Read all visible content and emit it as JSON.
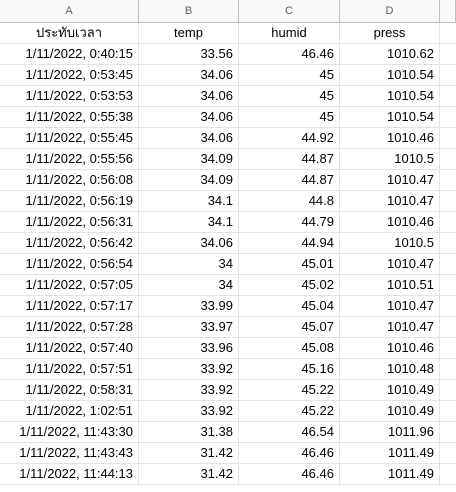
{
  "column_letters": [
    "A",
    "B",
    "C",
    "D"
  ],
  "header_row": {
    "a": "ประทับเวลา",
    "b": "temp",
    "c": "humid",
    "d": "press"
  },
  "rows": [
    [
      "1/11/2022, 0:40:15",
      "33.56",
      "46.46",
      "1010.62"
    ],
    [
      "1/11/2022, 0:53:45",
      "34.06",
      "45",
      "1010.54"
    ],
    [
      "1/11/2022, 0:53:53",
      "34.06",
      "45",
      "1010.54"
    ],
    [
      "1/11/2022, 0:55:38",
      "34.06",
      "45",
      "1010.54"
    ],
    [
      "1/11/2022, 0:55:45",
      "34.06",
      "44.92",
      "1010.46"
    ],
    [
      "1/11/2022, 0:55:56",
      "34.09",
      "44.87",
      "1010.5"
    ],
    [
      "1/11/2022, 0:56:08",
      "34.09",
      "44.87",
      "1010.47"
    ],
    [
      "1/11/2022, 0:56:19",
      "34.1",
      "44.8",
      "1010.47"
    ],
    [
      "1/11/2022, 0:56:31",
      "34.1",
      "44.79",
      "1010.46"
    ],
    [
      "1/11/2022, 0:56:42",
      "34.06",
      "44.94",
      "1010.5"
    ],
    [
      "1/11/2022, 0:56:54",
      "34",
      "45.01",
      "1010.47"
    ],
    [
      "1/11/2022, 0:57:05",
      "34",
      "45.02",
      "1010.51"
    ],
    [
      "1/11/2022, 0:57:17",
      "33.99",
      "45.04",
      "1010.47"
    ],
    [
      "1/11/2022, 0:57:28",
      "33.97",
      "45.07",
      "1010.47"
    ],
    [
      "1/11/2022, 0:57:40",
      "33.96",
      "45.08",
      "1010.46"
    ],
    [
      "1/11/2022, 0:57:51",
      "33.92",
      "45.16",
      "1010.48"
    ],
    [
      "1/11/2022, 0:58:31",
      "33.92",
      "45.22",
      "1010.49"
    ],
    [
      "1/11/2022, 1:02:51",
      "33.92",
      "45.22",
      "1010.49"
    ],
    [
      "1/11/2022, 11:43:30",
      "31.38",
      "46.54",
      "1011.96"
    ],
    [
      "1/11/2022, 11:43:43",
      "31.42",
      "46.46",
      "1011.49"
    ],
    [
      "1/11/2022, 11:44:13",
      "31.42",
      "46.46",
      "1011.49"
    ]
  ]
}
